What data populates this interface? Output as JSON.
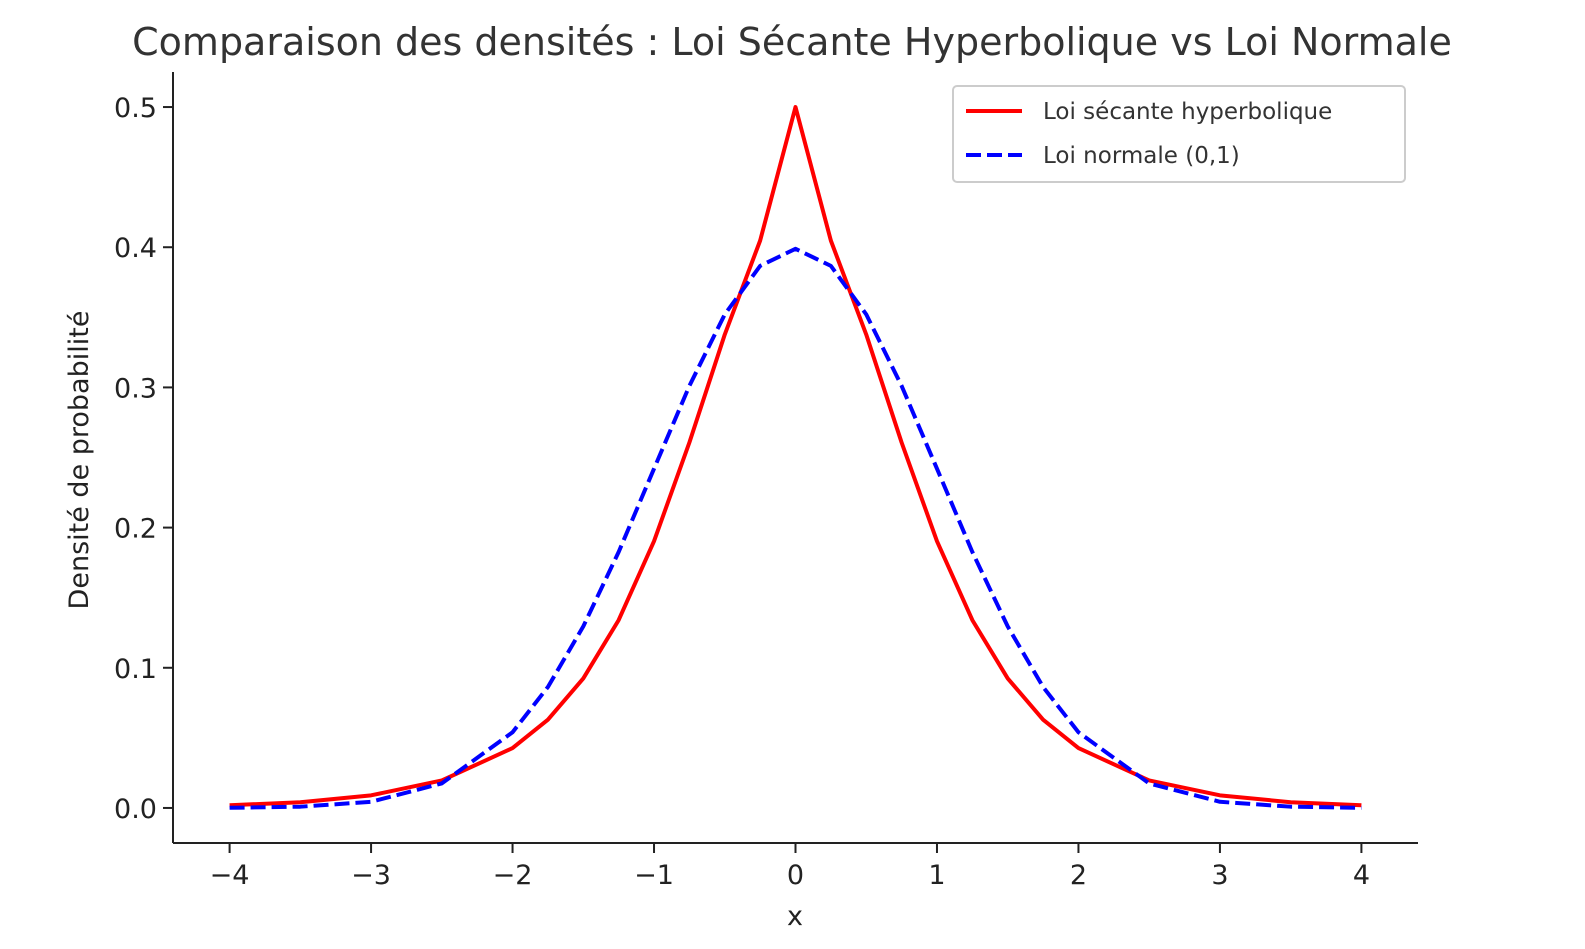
{
  "chart_data": {
    "type": "line",
    "title": "Comparaison des densités : Loi Sécante Hyperbolique vs Loi Normale",
    "xlabel": "x",
    "ylabel": "Densité de probabilité",
    "xlim": [
      -4.4,
      4.4
    ],
    "ylim": [
      -0.025,
      0.525
    ],
    "x_ticks": [
      -4,
      -3,
      -2,
      -1,
      0,
      1,
      2,
      3,
      4
    ],
    "x_tick_labels": [
      "−4",
      "−3",
      "−2",
      "−1",
      "0",
      "1",
      "2",
      "3",
      "4"
    ],
    "y_ticks": [
      0.0,
      0.1,
      0.2,
      0.3,
      0.4,
      0.5
    ],
    "y_tick_labels": [
      "0.0",
      "0.1",
      "0.2",
      "0.3",
      "0.4",
      "0.5"
    ],
    "grid": false,
    "legend_position": "top-right",
    "x": [
      -4.0,
      -3.5,
      -3.0,
      -2.5,
      -2.0,
      -1.75,
      -1.5,
      -1.25,
      -1.0,
      -0.75,
      -0.5,
      -0.25,
      0.0,
      0.25,
      0.5,
      0.75,
      1.0,
      1.25,
      1.5,
      1.75,
      2.0,
      2.5,
      3.0,
      3.5,
      4.0
    ],
    "series": [
      {
        "name": "Loi sécante hyperbolique",
        "color": "#ff0000",
        "style": "solid",
        "values": [
          0.0019,
          0.0041,
          0.009,
          0.0196,
          0.0427,
          0.063,
          0.0924,
          0.134,
          0.1903,
          0.2607,
          0.3377,
          0.4047,
          0.5,
          0.4047,
          0.3377,
          0.2607,
          0.1903,
          0.134,
          0.0924,
          0.063,
          0.0427,
          0.0196,
          0.009,
          0.0041,
          0.0019
        ]
      },
      {
        "name": "Loi normale (0,1)",
        "color": "#0000ff",
        "style": "dashed",
        "values": [
          0.0001,
          0.0009,
          0.0044,
          0.0175,
          0.054,
          0.0863,
          0.1295,
          0.1826,
          0.242,
          0.3011,
          0.3521,
          0.3867,
          0.3989,
          0.3867,
          0.3521,
          0.3011,
          0.242,
          0.1826,
          0.1295,
          0.0863,
          0.054,
          0.0175,
          0.0044,
          0.0009,
          0.0001
        ]
      }
    ]
  }
}
